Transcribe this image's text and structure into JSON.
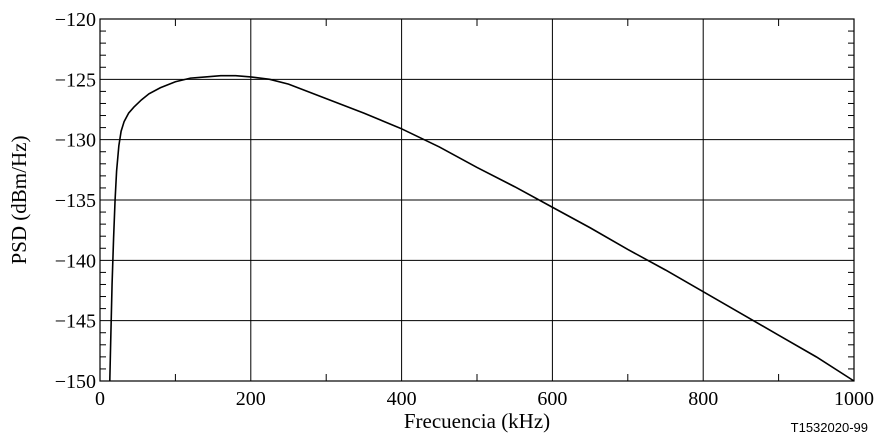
{
  "chart_data": {
    "type": "line",
    "title": "",
    "xlabel": "Frecuencia (kHz)",
    "ylabel": "PSD (dBm/Hz)",
    "xlim": [
      0,
      1000
    ],
    "ylim": [
      -150,
      -120
    ],
    "x_ticks": [
      "0",
      "200",
      "400",
      "600",
      "800",
      "1000"
    ],
    "y_ticks": [
      "−120",
      "−125",
      "−130",
      "−135",
      "−140",
      "−145",
      "−150"
    ],
    "grid": true,
    "legend": "none",
    "series": [
      {
        "x": [
          13,
          14,
          15,
          16,
          18,
          20,
          22,
          25,
          28,
          32,
          38,
          45,
          55,
          65,
          80,
          100,
          120,
          140,
          160,
          180,
          200,
          225,
          250,
          275,
          300,
          350,
          400,
          450,
          500,
          550,
          600,
          650,
          700,
          750,
          800,
          850,
          900,
          950,
          1000
        ],
        "y": [
          -150,
          -147.2,
          -144.6,
          -142,
          -138.2,
          -135,
          -132.6,
          -130.5,
          -129.3,
          -128.5,
          -127.8,
          -127.3,
          -126.7,
          -126.2,
          -125.7,
          -125.2,
          -124.9,
          -124.8,
          -124.7,
          -124.7,
          -124.8,
          -125,
          -125.4,
          -126,
          -126.6,
          -127.8,
          -129.1,
          -130.6,
          -132.3,
          -133.9,
          -135.6,
          -137.3,
          -139.1,
          -140.8,
          -142.6,
          -144.4,
          -146.2,
          -148,
          -150
        ]
      }
    ],
    "figure_id": "T1532020-99"
  },
  "colors": {
    "line": "#000000",
    "grid": "#000000",
    "background": "#ffffff"
  }
}
